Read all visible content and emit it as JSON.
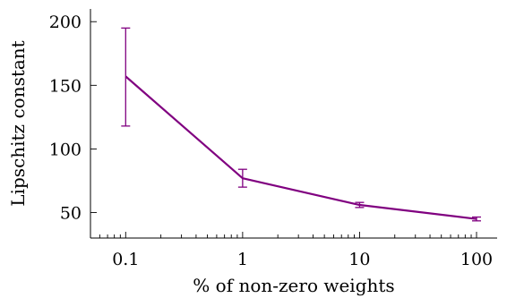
{
  "chart_data": {
    "type": "line",
    "title": "",
    "xlabel": "% of non-zero weights",
    "ylabel": "Lipschitz constant",
    "x_scale": "log",
    "xlim": [
      0.05,
      150
    ],
    "ylim": [
      30,
      210
    ],
    "x_ticks": [
      0.1,
      1,
      10,
      100
    ],
    "x_tick_labels": [
      "0.1",
      "1",
      "10",
      "100"
    ],
    "y_ticks": [
      50,
      100,
      150,
      200
    ],
    "y_tick_labels": [
      "50",
      "100",
      "150",
      "200"
    ],
    "grid": false,
    "legend": "none",
    "series": [
      {
        "color": "#800080",
        "x": [
          0.1,
          1,
          10,
          100
        ],
        "y": [
          157,
          77,
          56,
          45
        ],
        "error_low": [
          118,
          70,
          54,
          43.5
        ],
        "error_high": [
          195,
          84,
          58,
          46.5
        ]
      }
    ]
  }
}
